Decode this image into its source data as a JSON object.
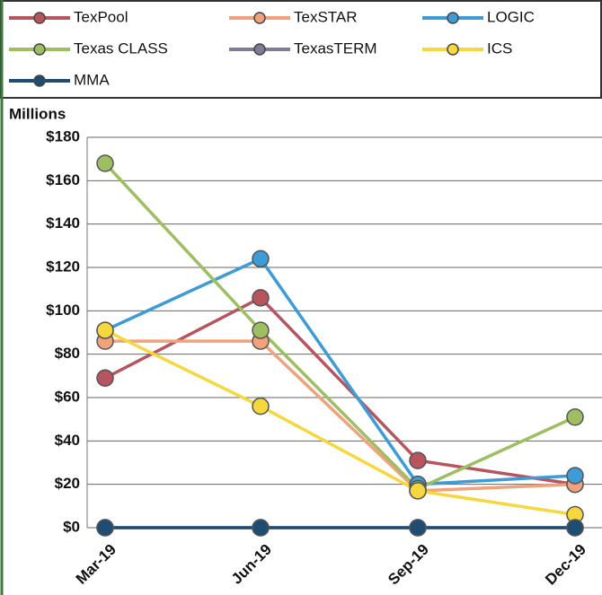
{
  "chart_data": {
    "type": "line",
    "y_label": "Millions",
    "categories": [
      "Mar-19",
      "Jun-19",
      "Sep-19",
      "Dec-19"
    ],
    "series": [
      {
        "name": "TexPool",
        "color": "#b8545e",
        "values": [
          69,
          106,
          31,
          20
        ]
      },
      {
        "name": "TexSTAR",
        "color": "#f2a27a",
        "values": [
          86,
          86,
          17,
          20
        ]
      },
      {
        "name": "LOGIC",
        "color": "#3d9bd6",
        "values": [
          91,
          124,
          20,
          24
        ]
      },
      {
        "name": "Texas CLASS",
        "color": "#9dbf62",
        "values": [
          168,
          91,
          18,
          51
        ]
      },
      {
        "name": "TexasTERM",
        "color": "#7e7d95",
        "values": [
          0,
          0,
          0,
          0
        ]
      },
      {
        "name": "ICS",
        "color": "#f6d83e",
        "values": [
          91,
          56,
          17,
          6
        ]
      },
      {
        "name": "MMA",
        "color": "#1e4c72",
        "values": [
          0,
          0,
          0,
          0
        ]
      }
    ],
    "ylim": [
      0,
      180
    ],
    "yticks": [
      {
        "value": 0,
        "label": "$0"
      },
      {
        "value": 20,
        "label": "$20"
      },
      {
        "value": 40,
        "label": "$40"
      },
      {
        "value": 60,
        "label": "$60"
      },
      {
        "value": 80,
        "label": "$80"
      },
      {
        "value": 100,
        "label": "$100"
      },
      {
        "value": 120,
        "label": "$120"
      },
      {
        "value": 140,
        "label": "$140"
      },
      {
        "value": 160,
        "label": "$160"
      },
      {
        "value": 180,
        "label": "$180"
      }
    ],
    "grid": true
  }
}
